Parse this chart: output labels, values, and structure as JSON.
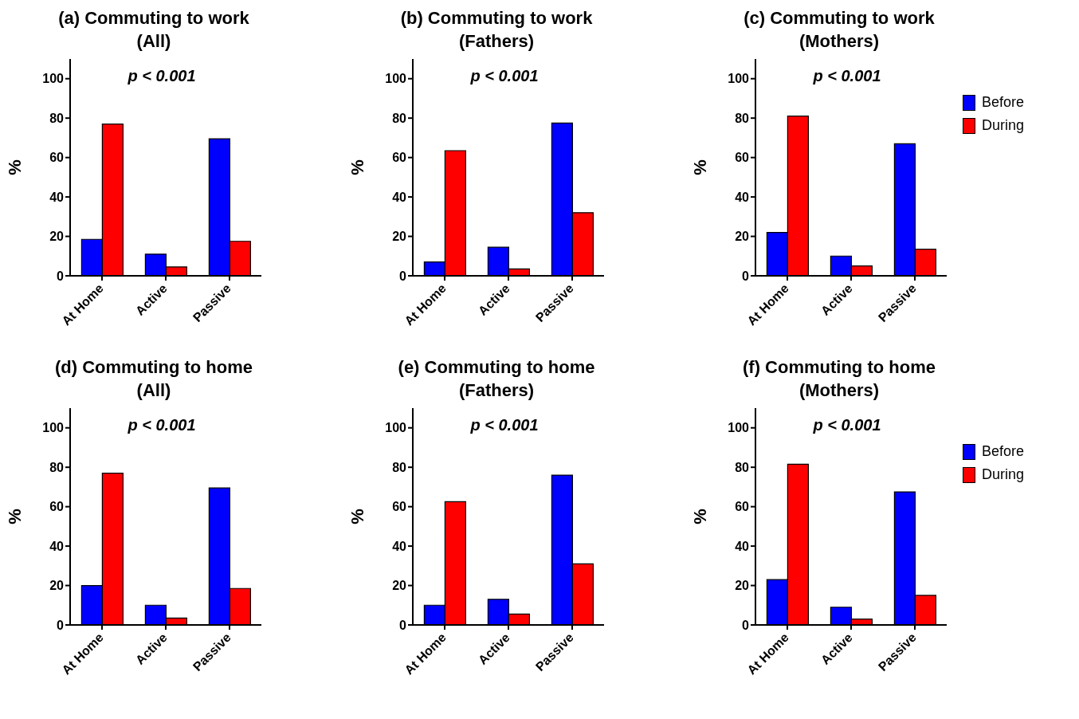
{
  "chart_data": [
    {
      "type": "bar",
      "title": "(a) Commuting to work\n(All)",
      "ylabel": "%",
      "categories": [
        "At Home",
        "Active",
        "Passive"
      ],
      "ylim": [
        0,
        110
      ],
      "yticks": [
        0,
        20,
        40,
        60,
        80,
        100
      ],
      "grid": false,
      "legend": false,
      "annotations": [
        "p < 0.001"
      ],
      "series": [
        {
          "color": "#0000ff",
          "values": [
            18.5,
            11,
            69.5
          ]
        },
        {
          "color": "#ff0000",
          "values": [
            77,
            4.5,
            17.5
          ]
        }
      ]
    },
    {
      "type": "bar",
      "title": "(b) Commuting to work\n(Fathers)",
      "ylabel": "%",
      "categories": [
        "At Home",
        "Active",
        "Passive"
      ],
      "ylim": [
        0,
        110
      ],
      "yticks": [
        0,
        20,
        40,
        60,
        80,
        100
      ],
      "grid": false,
      "legend": false,
      "annotations": [
        "p < 0.001"
      ],
      "series": [
        {
          "color": "#0000ff",
          "values": [
            7,
            14.5,
            77.5
          ]
        },
        {
          "color": "#ff0000",
          "values": [
            63.5,
            3.5,
            32
          ]
        }
      ]
    },
    {
      "type": "bar",
      "title": "(c) Commuting to work\n(Mothers)",
      "ylabel": "%",
      "categories": [
        "At Home",
        "Active",
        "Passive"
      ],
      "ylim": [
        0,
        110
      ],
      "yticks": [
        0,
        20,
        40,
        60,
        80,
        100
      ],
      "grid": false,
      "legend": "right",
      "annotations": [
        "p < 0.001"
      ],
      "series": [
        {
          "name": "Before",
          "color": "#0000ff",
          "values": [
            22,
            10,
            67
          ]
        },
        {
          "name": "During",
          "color": "#ff0000",
          "values": [
            81,
            5,
            13.5
          ]
        }
      ]
    },
    {
      "type": "bar",
      "title": "(d) Commuting to home\n(All)",
      "ylabel": "%",
      "categories": [
        "At Home",
        "Active",
        "Passive"
      ],
      "ylim": [
        0,
        110
      ],
      "yticks": [
        0,
        20,
        40,
        60,
        80,
        100
      ],
      "grid": false,
      "legend": false,
      "annotations": [
        "p < 0.001"
      ],
      "series": [
        {
          "color": "#0000ff",
          "values": [
            20,
            10,
            69.5
          ]
        },
        {
          "color": "#ff0000",
          "values": [
            77,
            3.5,
            18.5
          ]
        }
      ]
    },
    {
      "type": "bar",
      "title": "(e) Commuting to home\n(Fathers)",
      "ylabel": "%",
      "categories": [
        "At Home",
        "Active",
        "Passive"
      ],
      "ylim": [
        0,
        110
      ],
      "yticks": [
        0,
        20,
        40,
        60,
        80,
        100
      ],
      "grid": false,
      "legend": false,
      "annotations": [
        "p < 0.001"
      ],
      "series": [
        {
          "color": "#0000ff",
          "values": [
            10,
            13,
            76
          ]
        },
        {
          "color": "#ff0000",
          "values": [
            62.5,
            5.5,
            31
          ]
        }
      ]
    },
    {
      "type": "bar",
      "title": "(f) Commuting to home\n(Mothers)",
      "ylabel": "%",
      "categories": [
        "At Home",
        "Active",
        "Passive"
      ],
      "ylim": [
        0,
        110
      ],
      "yticks": [
        0,
        20,
        40,
        60,
        80,
        100
      ],
      "grid": false,
      "legend": "right",
      "annotations": [
        "p < 0.001"
      ],
      "series": [
        {
          "name": "Before",
          "color": "#0000ff",
          "values": [
            23,
            9,
            67.5
          ]
        },
        {
          "name": "During",
          "color": "#ff0000",
          "values": [
            81.5,
            3,
            15
          ]
        }
      ]
    }
  ]
}
